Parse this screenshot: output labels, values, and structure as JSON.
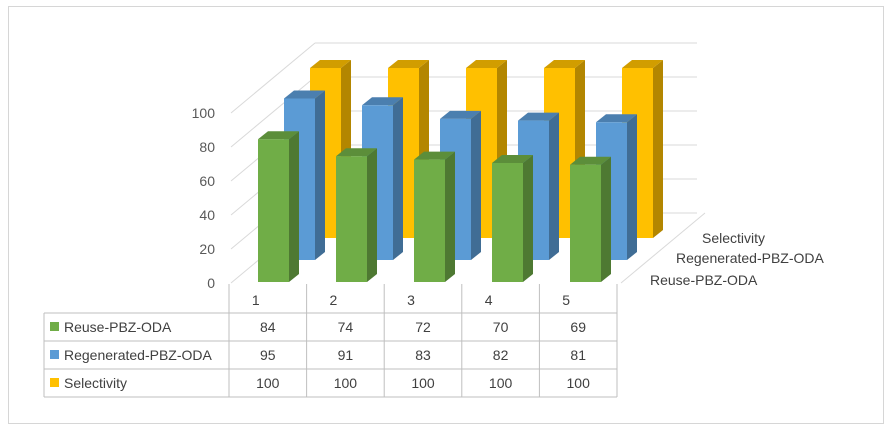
{
  "chart_data": {
    "type": "bar",
    "subtype": "3d-column-with-data-table",
    "title": "",
    "categories": [
      "1",
      "2",
      "3",
      "4",
      "5"
    ],
    "series": [
      {
        "name": "Reuse-PBZ-ODA",
        "values": [
          84,
          74,
          72,
          70,
          69
        ],
        "color": "#70ad47"
      },
      {
        "name": "Regenerated-PBZ-ODA",
        "values": [
          95,
          91,
          83,
          82,
          81
        ],
        "color": "#5b9bd5"
      },
      {
        "name": "Selectivity",
        "values": [
          100,
          100,
          100,
          100,
          100
        ],
        "color": "#ffc000"
      }
    ],
    "y_ticks": [
      "0",
      "20",
      "40",
      "60",
      "80",
      "100"
    ],
    "ylim": [
      0,
      100
    ],
    "grid": true,
    "legend": "data-table"
  }
}
